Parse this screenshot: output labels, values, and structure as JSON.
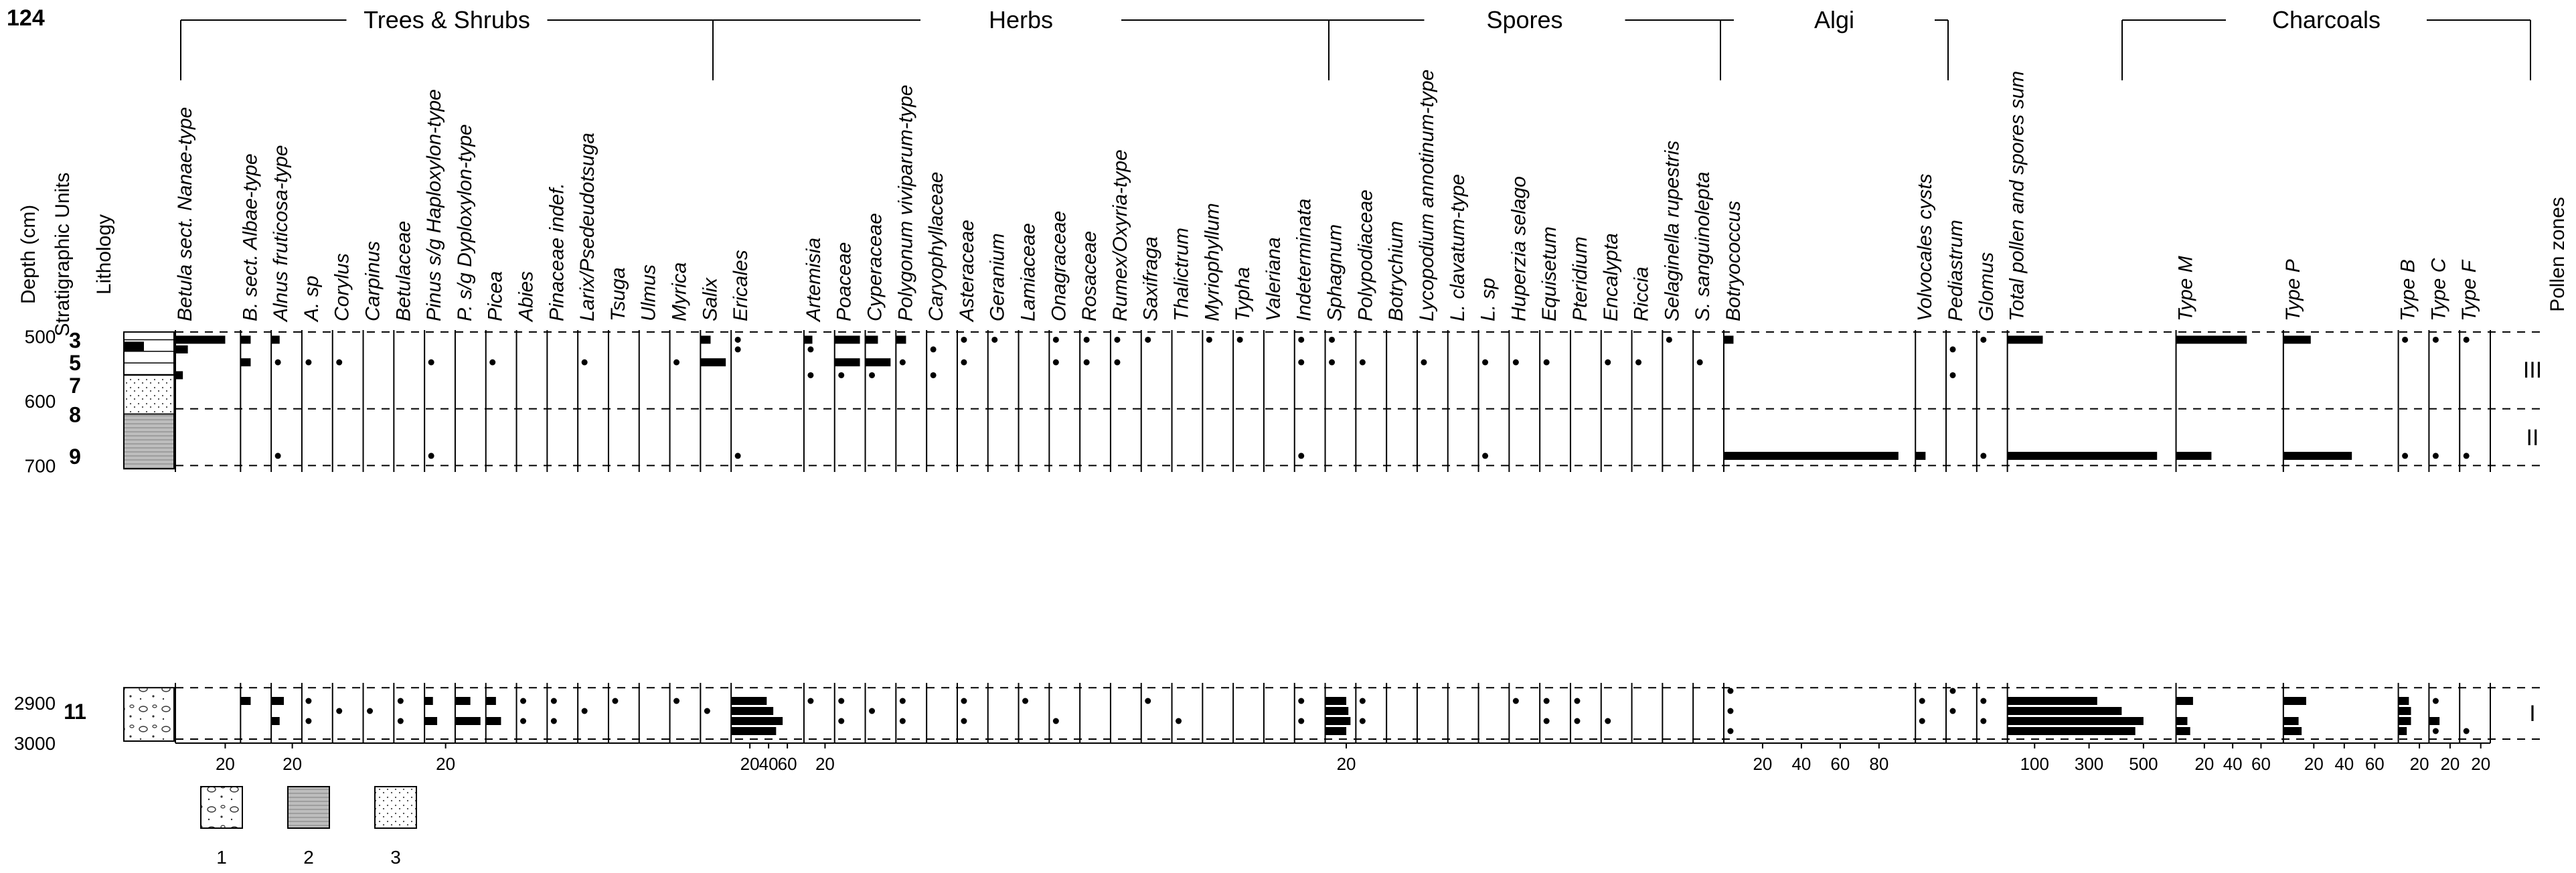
{
  "figure": {
    "page_number": "124",
    "y_axis_label": "Depth (cm)",
    "units_label": "Stratigraphic Units",
    "lithology_label": "Lithology",
    "pollen_zones_label": "Pollen zones",
    "legend": [
      {
        "key": "1",
        "pattern": "gravel"
      },
      {
        "key": "2",
        "pattern": "silt"
      },
      {
        "key": "3",
        "pattern": "sand"
      }
    ]
  },
  "chart_data": {
    "type": "bar",
    "orientation": "horizontal",
    "title": "",
    "depth_ticks_upper": [
      "500",
      "600",
      "700"
    ],
    "depth_ticks_lower": [
      "2900",
      "3000"
    ],
    "ylim_upper": [
      490,
      710
    ],
    "ylim_lower": [
      2850,
      3000
    ],
    "stratigraphic_units": [
      {
        "label": "3",
        "depth": 505
      },
      {
        "label": "5",
        "depth": 540
      },
      {
        "label": "7",
        "depth": 575
      },
      {
        "label": "8",
        "depth": 620
      },
      {
        "label": "9",
        "depth": 685
      },
      {
        "label": "11",
        "depth": 2920
      }
    ],
    "zones": [
      {
        "label": "III",
        "from": 490,
        "to": 612
      },
      {
        "label": "II",
        "from": 612,
        "to": 700
      },
      {
        "label": "I",
        "from": 2860,
        "to": 2990
      }
    ],
    "zone_boundaries_upper": [
      493,
      612,
      700
    ],
    "zone_boundaries_lower": [
      2862,
      2990
    ],
    "groups": [
      {
        "name": "Trees & Shrubs",
        "first": 0,
        "last": 14
      },
      {
        "name": "Herbs",
        "first": 15,
        "last": 31
      },
      {
        "name": "Spores",
        "first": 32,
        "last": 42
      },
      {
        "name": "Algi",
        "first": 43,
        "last": 45
      },
      {
        "name": "Charcoals",
        "first": 48,
        "last": 52
      }
    ],
    "samples_upper": [
      505,
      520,
      540,
      560,
      685
    ],
    "samples_lower": [
      2870,
      2895,
      2920,
      2945,
      2970
    ],
    "series": [
      {
        "name": "Betula sect. Nanae-type",
        "values": [
          20,
          5,
          0,
          3,
          0
        ],
        "values_lower": [
          0,
          0,
          0,
          0,
          0
        ],
        "xticks": [
          "20"
        ]
      },
      {
        "name": "B. sect. Albae-type",
        "values": [
          2,
          0,
          2,
          0,
          0
        ],
        "values_lower": [
          0,
          2,
          0,
          0,
          0
        ],
        "xticks": []
      },
      {
        "name": "Alnus fruticosa-type",
        "values": [
          8,
          0,
          2,
          0,
          1
        ],
        "values_lower": [
          0,
          12,
          0,
          8,
          0
        ],
        "xticks": [
          "20"
        ]
      },
      {
        "name": "A. sp",
        "values": [
          0,
          0,
          1,
          0,
          0
        ],
        "values_lower": [
          0,
          1,
          0,
          1,
          0
        ],
        "xticks": []
      },
      {
        "name": "Corylus",
        "values": [
          0,
          0,
          1,
          0,
          0
        ],
        "values_lower": [
          0,
          0,
          1,
          0,
          0
        ],
        "xticks": []
      },
      {
        "name": "Carpinus",
        "values": [
          0,
          0,
          0,
          0,
          0
        ],
        "values_lower": [
          0,
          0,
          1,
          0,
          0
        ],
        "xticks": []
      },
      {
        "name": "Betulaceae",
        "values": [
          0,
          0,
          0,
          0,
          0
        ],
        "values_lower": [
          0,
          1,
          0,
          1,
          0
        ],
        "xticks": []
      },
      {
        "name": "Pinus s/g Haploxylon-type",
        "values": [
          0,
          0,
          1,
          0,
          1
        ],
        "values_lower": [
          0,
          8,
          0,
          12,
          0
        ],
        "xticks": [
          "20"
        ]
      },
      {
        "name": "P. s/g Dyploxylon-type",
        "values": [
          0,
          0,
          0,
          0,
          0
        ],
        "values_lower": [
          0,
          3,
          0,
          5,
          0
        ],
        "xticks": []
      },
      {
        "name": "Picea",
        "values": [
          0,
          0,
          1,
          0,
          0
        ],
        "values_lower": [
          0,
          2,
          0,
          3,
          0
        ],
        "xticks": []
      },
      {
        "name": "Abies",
        "values": [
          0,
          0,
          0,
          0,
          0
        ],
        "values_lower": [
          0,
          1,
          0,
          1,
          0
        ],
        "xticks": []
      },
      {
        "name": "Pinaceae indef.",
        "values": [
          0,
          0,
          0,
          0,
          0
        ],
        "values_lower": [
          0,
          1,
          0,
          1,
          0
        ],
        "xticks": []
      },
      {
        "name": "Larix/Psedeudotsuga",
        "values": [
          0,
          0,
          1,
          0,
          0
        ],
        "values_lower": [
          0,
          0,
          1,
          0,
          0
        ],
        "xticks": []
      },
      {
        "name": "Tsuga",
        "values": [
          0,
          0,
          0,
          0,
          0
        ],
        "values_lower": [
          0,
          1,
          0,
          0,
          0
        ],
        "xticks": []
      },
      {
        "name": "Ulmus",
        "values": [
          0,
          0,
          0,
          0,
          0
        ],
        "values_lower": [
          0,
          0,
          0,
          0,
          0
        ],
        "xticks": []
      },
      {
        "name": "Myrica",
        "values": [
          0,
          0,
          1,
          0,
          0
        ],
        "values_lower": [
          0,
          1,
          0,
          0,
          0
        ],
        "xticks": []
      },
      {
        "name": "Salix",
        "values": [
          2,
          0,
          5,
          0,
          0
        ],
        "values_lower": [
          0,
          0,
          1,
          0,
          0
        ],
        "xticks": []
      },
      {
        "name": "Ericales",
        "values": [
          5,
          1,
          0,
          0,
          1
        ],
        "values_lower": [
          0,
          38,
          45,
          55,
          48
        ],
        "xticks": [
          "20",
          "40",
          "60"
        ]
      },
      {
        "name": "Artemisia",
        "values": [
          8,
          1,
          0,
          1,
          0
        ],
        "values_lower": [
          0,
          1,
          0,
          0,
          0
        ],
        "xticks": [
          "20"
        ]
      },
      {
        "name": "Poaceae",
        "values": [
          5,
          0,
          5,
          1,
          0
        ],
        "values_lower": [
          0,
          1,
          0,
          1,
          0
        ],
        "xticks": []
      },
      {
        "name": "Cyperaceae",
        "values": [
          5,
          0,
          10,
          1,
          0
        ],
        "values_lower": [
          0,
          0,
          1,
          0,
          0
        ],
        "xticks": []
      },
      {
        "name": "Polygonum viviparum-type",
        "values": [
          2,
          0,
          1,
          0,
          0
        ],
        "values_lower": [
          0,
          1,
          0,
          1,
          0
        ],
        "xticks": []
      },
      {
        "name": "Caryophyllaceae",
        "values": [
          0,
          1,
          0,
          1,
          0
        ],
        "values_lower": [
          0,
          0,
          0,
          0,
          0
        ],
        "xticks": []
      },
      {
        "name": "Asteraceae",
        "values": [
          1,
          0,
          1,
          0,
          0
        ],
        "values_lower": [
          0,
          1,
          0,
          1,
          0
        ],
        "xticks": []
      },
      {
        "name": "Geranium",
        "values": [
          1,
          0,
          0,
          0,
          0
        ],
        "values_lower": [
          0,
          0,
          0,
          0,
          0
        ],
        "xticks": []
      },
      {
        "name": "Lamiaceae",
        "values": [
          0,
          0,
          0,
          0,
          0
        ],
        "values_lower": [
          0,
          1,
          0,
          0,
          0
        ],
        "xticks": []
      },
      {
        "name": "Onagraceae",
        "values": [
          1,
          0,
          1,
          0,
          0
        ],
        "values_lower": [
          0,
          0,
          0,
          1,
          0
        ],
        "xticks": []
      },
      {
        "name": "Rosaceae",
        "values": [
          1,
          0,
          1,
          0,
          0
        ],
        "values_lower": [
          0,
          0,
          0,
          0,
          0
        ],
        "xticks": []
      },
      {
        "name": "Rumex/Oxyria-type",
        "values": [
          1,
          0,
          1,
          0,
          0
        ],
        "values_lower": [
          0,
          0,
          0,
          0,
          0
        ],
        "xticks": []
      },
      {
        "name": "Saxifraga",
        "values": [
          1,
          0,
          0,
          0,
          0
        ],
        "values_lower": [
          0,
          1,
          0,
          0,
          0
        ],
        "xticks": []
      },
      {
        "name": "Thalictrum",
        "values": [
          0,
          0,
          0,
          0,
          0
        ],
        "values_lower": [
          0,
          0,
          0,
          1,
          0
        ],
        "xticks": []
      },
      {
        "name": "Myriophyllum",
        "values": [
          1,
          0,
          0,
          0,
          0
        ],
        "values_lower": [
          0,
          0,
          0,
          0,
          0
        ],
        "xticks": []
      },
      {
        "name": "Typha",
        "values": [
          1,
          0,
          0,
          0,
          0
        ],
        "values_lower": [
          0,
          0,
          0,
          0,
          0
        ],
        "xticks": []
      },
      {
        "name": "Valeriana",
        "values": [
          0,
          0,
          0,
          0,
          0
        ],
        "values_lower": [
          0,
          0,
          0,
          0,
          0
        ],
        "xticks": []
      },
      {
        "name": "Indeterminata",
        "values": [
          1,
          0,
          1,
          0,
          1
        ],
        "values_lower": [
          0,
          1,
          0,
          1,
          0
        ],
        "xticks": []
      },
      {
        "name": "Sphagnum",
        "values": [
          1,
          0,
          1,
          0,
          0
        ],
        "values_lower": [
          0,
          20,
          22,
          25,
          20
        ],
        "xticks": [
          "20"
        ]
      },
      {
        "name": "Polypodiaceae",
        "values": [
          0,
          0,
          1,
          0,
          0
        ],
        "values_lower": [
          0,
          1,
          0,
          1,
          0
        ],
        "xticks": []
      },
      {
        "name": "Botrychium",
        "values": [
          0,
          0,
          0,
          0,
          0
        ],
        "values_lower": [
          0,
          0,
          0,
          0,
          0
        ],
        "xticks": []
      },
      {
        "name": "Lycopodium annotinum-type",
        "values": [
          0,
          0,
          1,
          0,
          0
        ],
        "values_lower": [
          0,
          0,
          0,
          0,
          0
        ],
        "xticks": []
      },
      {
        "name": "L. clavatum-type",
        "values": [
          0,
          0,
          0,
          0,
          0
        ],
        "values_lower": [
          0,
          0,
          0,
          0,
          0
        ],
        "xticks": []
      },
      {
        "name": "L. sp",
        "values": [
          0,
          0,
          1,
          0,
          1
        ],
        "values_lower": [
          0,
          0,
          0,
          0,
          0
        ],
        "xticks": []
      },
      {
        "name": "Huperzia selago",
        "values": [
          0,
          0,
          1,
          0,
          0
        ],
        "values_lower": [
          0,
          1,
          0,
          0,
          0
        ],
        "xticks": []
      },
      {
        "name": "Equisetum",
        "values": [
          0,
          0,
          1,
          0,
          0
        ],
        "values_lower": [
          0,
          1,
          0,
          1,
          0
        ],
        "xticks": []
      },
      {
        "name": "Pteridium",
        "values": [
          0,
          0,
          0,
          0,
          0
        ],
        "values_lower": [
          0,
          1,
          0,
          1,
          0
        ],
        "xticks": []
      },
      {
        "name": "Encalypta",
        "values": [
          0,
          0,
          1,
          0,
          0
        ],
        "values_lower": [
          0,
          0,
          0,
          1,
          0
        ],
        "xticks": []
      },
      {
        "name": "Riccia",
        "values": [
          0,
          0,
          1,
          0,
          0
        ],
        "values_lower": [
          0,
          0,
          0,
          0,
          0
        ],
        "xticks": []
      },
      {
        "name": "Selaginella rupestris",
        "values": [
          1,
          0,
          0,
          0,
          0
        ],
        "values_lower": [
          0,
          0,
          0,
          0,
          0
        ],
        "xticks": []
      },
      {
        "name": "S. sanguinolepta",
        "values": [
          0,
          0,
          1,
          0,
          0
        ],
        "values_lower": [
          0,
          0,
          0,
          0,
          0
        ],
        "xticks": []
      },
      {
        "name": "Botryococcus",
        "values": [
          5,
          0,
          0,
          0,
          90
        ],
        "values_lower": [
          1,
          0,
          1,
          0,
          1
        ],
        "xticks": [
          "20",
          "40",
          "60",
          "80"
        ]
      },
      {
        "name": "Volvocales cysts",
        "values": [
          0,
          0,
          0,
          0,
          2
        ],
        "values_lower": [
          0,
          1,
          0,
          1,
          0
        ],
        "xticks": []
      },
      {
        "name": "Pediastrum",
        "values": [
          0,
          1,
          0,
          1,
          0
        ],
        "values_lower": [
          1,
          0,
          1,
          0,
          0
        ],
        "xticks": []
      },
      {
        "name": "Glomus",
        "values": [
          1,
          0,
          0,
          0,
          1
        ],
        "values_lower": [
          0,
          1,
          0,
          1,
          0
        ],
        "xticks": []
      },
      {
        "name": "Total pollen and spores sum",
        "values": [
          130,
          0,
          0,
          0,
          550
        ],
        "values_lower": [
          0,
          330,
          420,
          500,
          470
        ],
        "xticks": [
          "100",
          "300",
          "500"
        ]
      },
      {
        "name": "Type M",
        "values": [
          50,
          0,
          0,
          0,
          25
        ],
        "values_lower": [
          0,
          12,
          0,
          8,
          10
        ],
        "xticks": [
          "20",
          "40",
          "60"
        ]
      },
      {
        "name": "Type P",
        "values": [
          18,
          0,
          0,
          0,
          45
        ],
        "values_lower": [
          0,
          15,
          0,
          10,
          12
        ],
        "xticks": [
          "20",
          "40",
          "60"
        ]
      },
      {
        "name": "Type B",
        "values": [
          2,
          0,
          0,
          0,
          2
        ],
        "values_lower": [
          0,
          10,
          12,
          12,
          8
        ],
        "xticks": [
          "20"
        ]
      },
      {
        "name": "Type C",
        "values": [
          1,
          0,
          0,
          0,
          2
        ],
        "values_lower": [
          0,
          4,
          0,
          10,
          2
        ],
        "xticks": [
          "20"
        ]
      },
      {
        "name": "Type F",
        "values": [
          5,
          0,
          0,
          0,
          1
        ],
        "values_lower": [
          0,
          0,
          0,
          0,
          2
        ],
        "xticks": [
          "20"
        ]
      }
    ]
  }
}
